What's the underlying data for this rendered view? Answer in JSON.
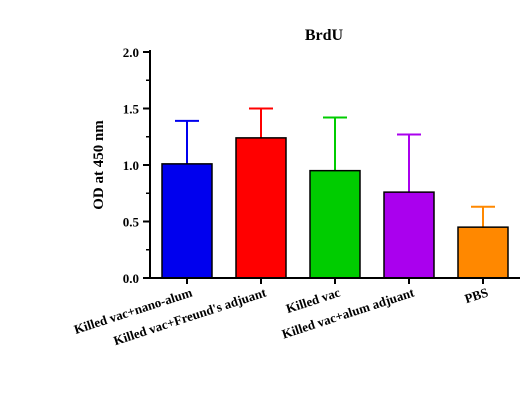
{
  "chart_data": {
    "type": "bar",
    "title": "BrdU",
    "xlabel": "",
    "ylabel": "OD at 450 nm",
    "ylim": [
      0,
      2.0
    ],
    "yticks": [
      "0.0",
      "0.5",
      "1.0",
      "1.5",
      "2.0"
    ],
    "categories": [
      "Killed vac+nano-alum",
      "Killed vac+Freund's adjuant",
      "Killed vac",
      "Killed vac+alum adjuant",
      "PBS"
    ],
    "values": [
      1.01,
      1.24,
      0.95,
      0.76,
      0.45
    ],
    "errors": [
      0.38,
      0.26,
      0.47,
      0.51,
      0.18
    ],
    "colors": [
      "#0000ee",
      "#ff0000",
      "#00cc00",
      "#aa00ee",
      "#ff8800"
    ],
    "grid": false,
    "legend": "none"
  }
}
